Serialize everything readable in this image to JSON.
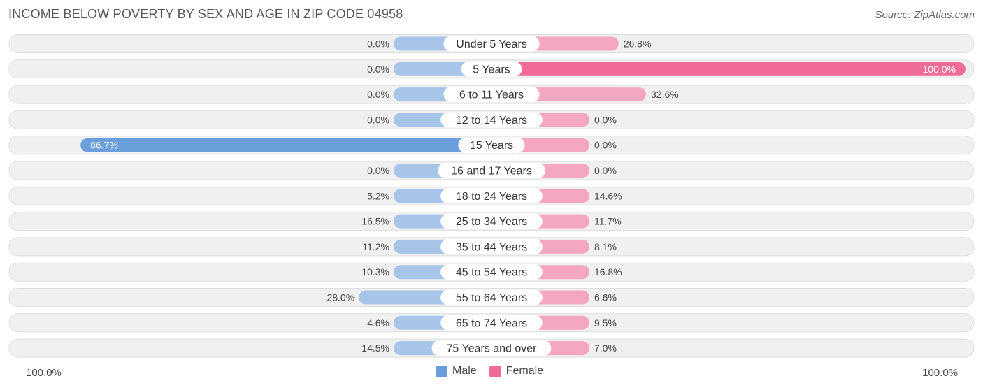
{
  "header": {
    "title": "INCOME BELOW POVERTY BY SEX AND AGE IN ZIP CODE 04958",
    "source": "Source: ZipAtlas.com"
  },
  "axis": {
    "left_label": "100.0%",
    "right_label": "100.0%"
  },
  "legend": {
    "male_label": "Male",
    "female_label": "Female"
  },
  "colors": {
    "male": "#a7c5e8",
    "male_strong": "#6a9fdc",
    "female": "#f5a6c0",
    "female_strong": "#f06b98",
    "row_bg": "#f0f0f0",
    "row_border": "#dddddd"
  },
  "chart_data": {
    "type": "bar",
    "orientation": "horizontal-diverging",
    "title": "INCOME BELOW POVERTY BY SEX AND AGE IN ZIP CODE 04958",
    "categories": [
      "Under 5 Years",
      "5 Years",
      "6 to 11 Years",
      "12 to 14 Years",
      "15 Years",
      "16 and 17 Years",
      "18 to 24 Years",
      "25 to 34 Years",
      "35 to 44 Years",
      "45 to 54 Years",
      "55 to 64 Years",
      "65 to 74 Years",
      "75 Years and over"
    ],
    "series": [
      {
        "name": "Male",
        "values": [
          0.0,
          0.0,
          0.0,
          0.0,
          86.7,
          0.0,
          5.2,
          16.5,
          11.2,
          10.3,
          28.0,
          4.6,
          14.5
        ],
        "labels": [
          "0.0%",
          "0.0%",
          "0.0%",
          "0.0%",
          "86.7%",
          "0.0%",
          "5.2%",
          "16.5%",
          "11.2%",
          "10.3%",
          "28.0%",
          "4.6%",
          "14.5%"
        ]
      },
      {
        "name": "Female",
        "values": [
          26.8,
          100.0,
          32.6,
          0.0,
          0.0,
          0.0,
          14.6,
          11.7,
          8.1,
          16.8,
          6.6,
          9.5,
          7.0
        ],
        "labels": [
          "26.8%",
          "100.0%",
          "32.6%",
          "0.0%",
          "0.0%",
          "0.0%",
          "14.6%",
          "11.7%",
          "8.1%",
          "16.8%",
          "6.6%",
          "9.5%",
          "7.0%"
        ]
      }
    ],
    "xlim": [
      -100,
      100
    ],
    "unit": "%"
  }
}
